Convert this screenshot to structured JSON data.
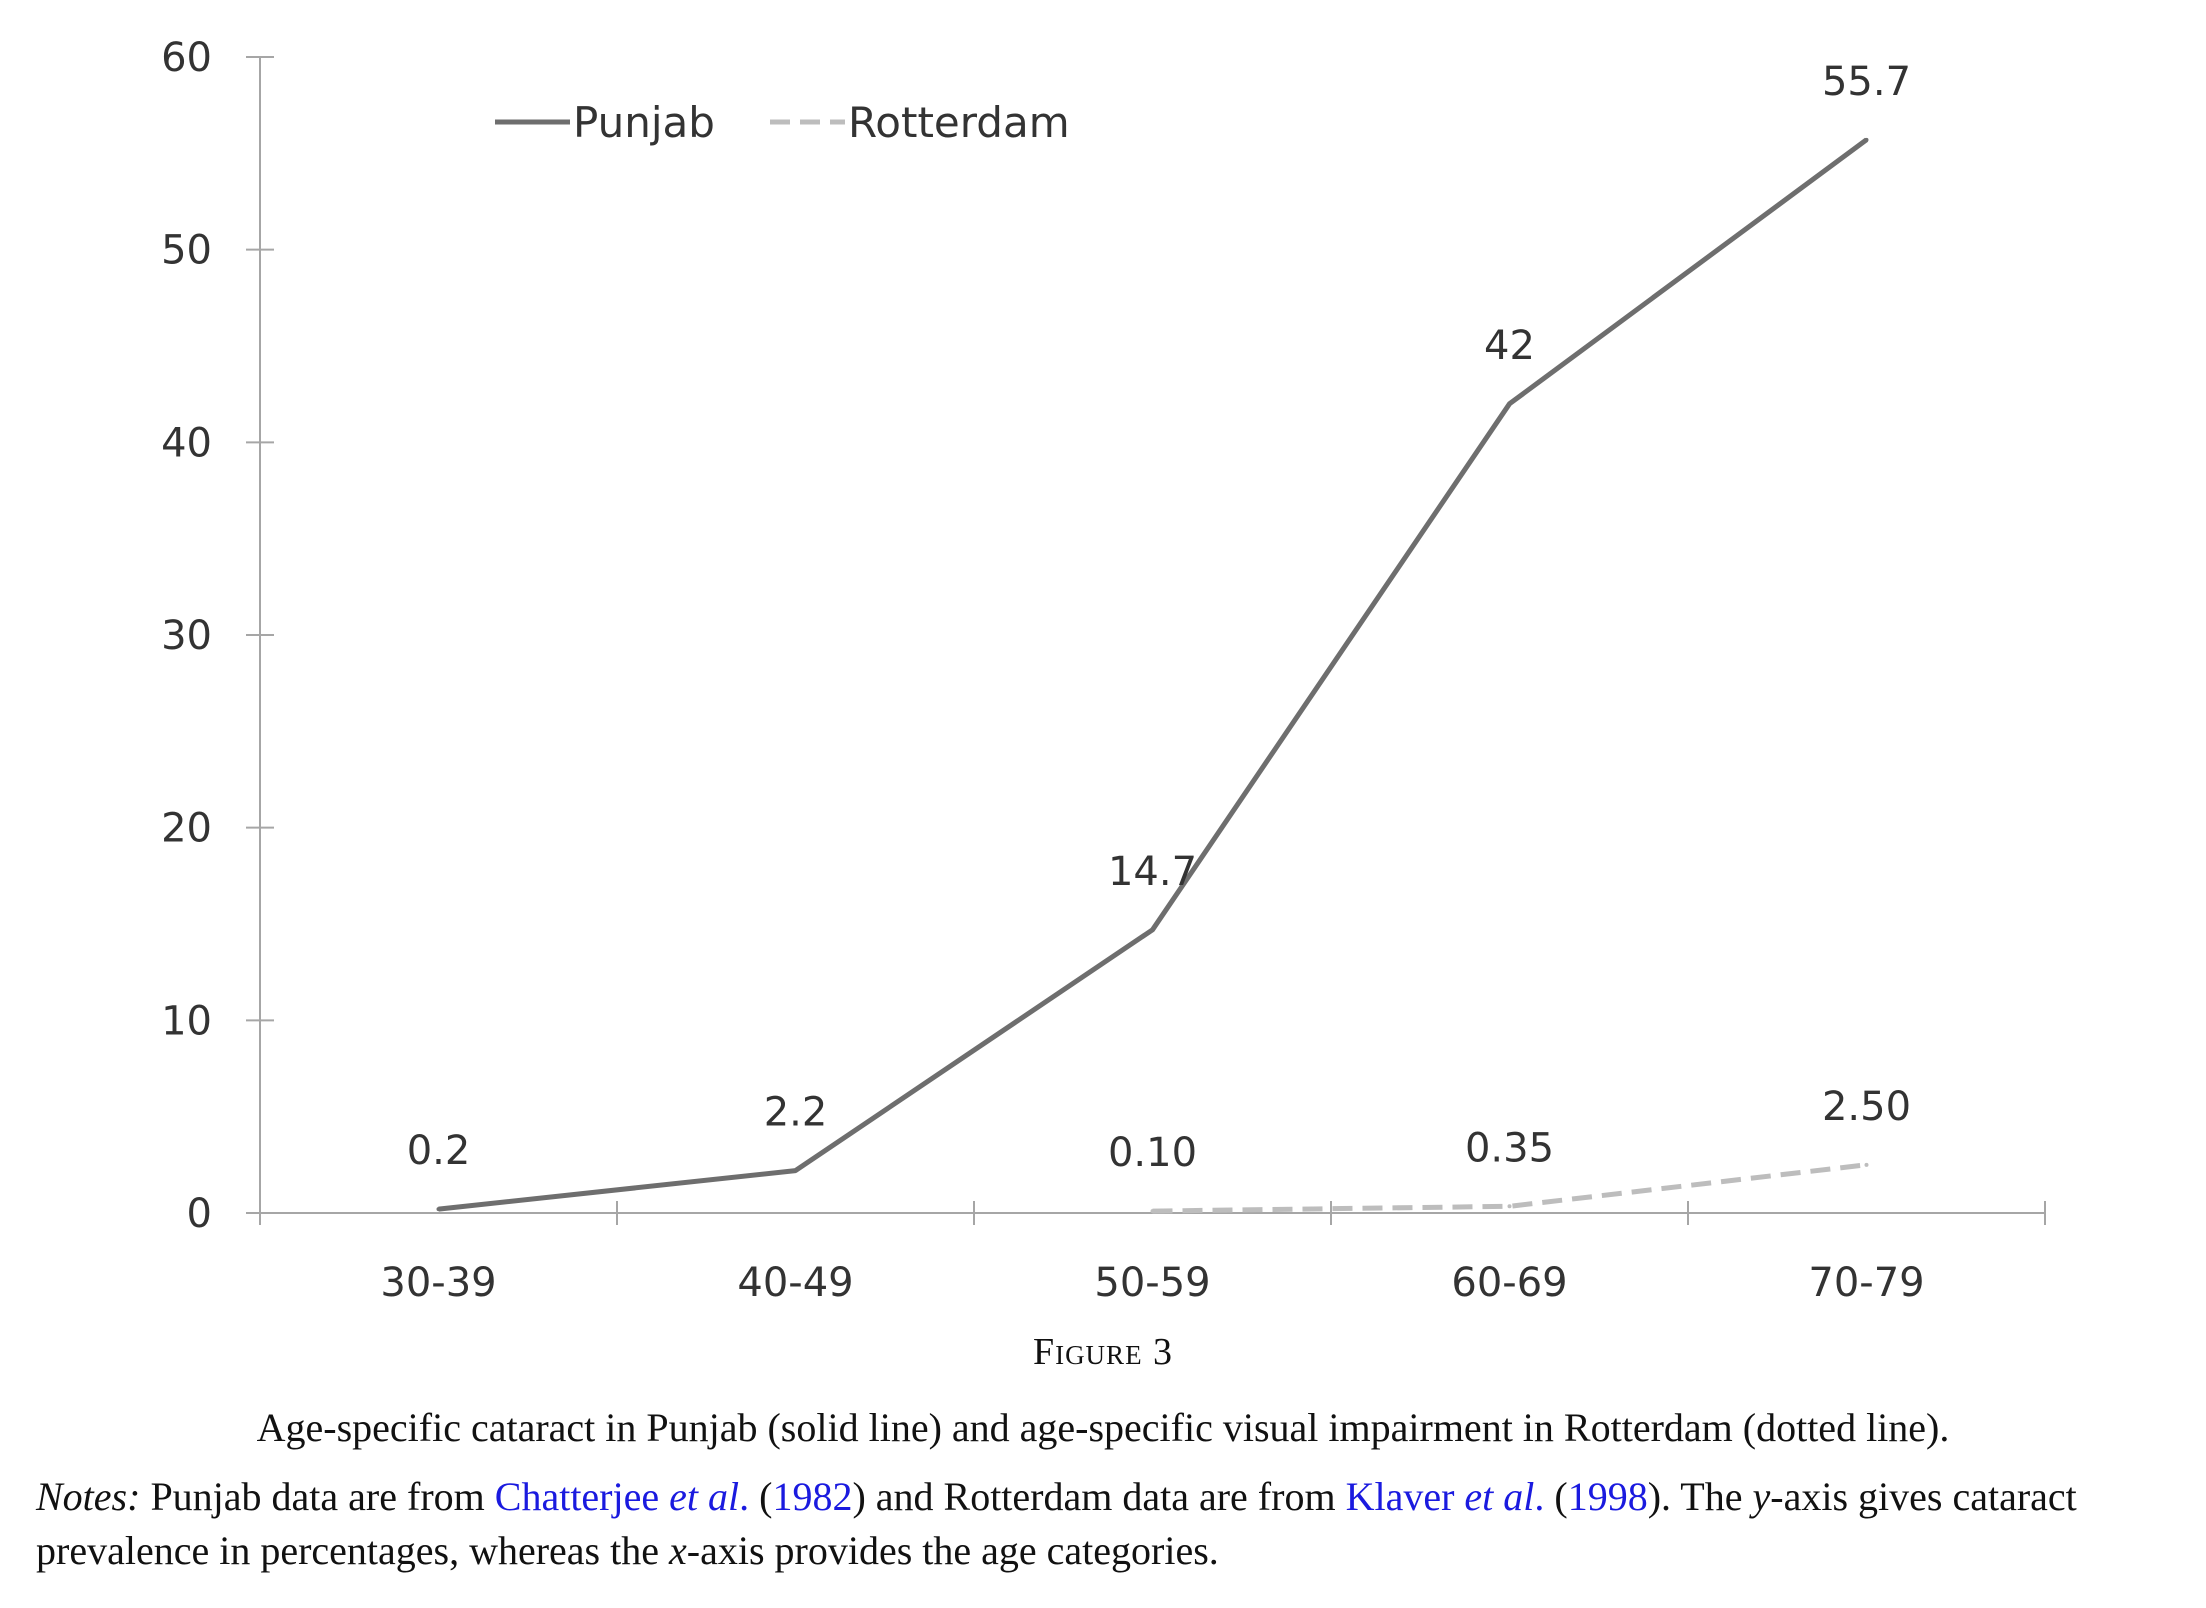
{
  "chart_data": {
    "type": "line",
    "categories": [
      "30-39",
      "40-49",
      "50-59",
      "60-69",
      "70-79"
    ],
    "ylim": [
      0,
      60
    ],
    "yticks": [
      0,
      10,
      20,
      30,
      40,
      50,
      60
    ],
    "grid": false,
    "legend_position": "top-left",
    "series": [
      {
        "name": "Punjab",
        "style": "solid",
        "color": "#6e6e6e",
        "points": [
          {
            "x": "30-39",
            "y": 0.2,
            "label": "0.2"
          },
          {
            "x": "40-49",
            "y": 2.2,
            "label": "2.2"
          },
          {
            "x": "50-59",
            "y": 14.7,
            "label": "14.7"
          },
          {
            "x": "60-69",
            "y": 42,
            "label": "42"
          },
          {
            "x": "70-79",
            "y": 55.7,
            "label": "55.7"
          }
        ]
      },
      {
        "name": "Rotterdam",
        "style": "dashed",
        "color": "#bdbdbd",
        "points": [
          {
            "x": "50-59",
            "y": 0.1,
            "label": "0.10"
          },
          {
            "x": "60-69",
            "y": 0.35,
            "label": "0.35"
          },
          {
            "x": "70-79",
            "y": 2.5,
            "label": "2.50"
          }
        ]
      }
    ]
  },
  "figure": {
    "title": "Figure 3",
    "caption": "Age-specific cataract in Punjab (solid line) and age-specific visual impairment in Rotterdam (dotted line).",
    "notes": {
      "label": "Notes:",
      "t1": " Punjab data are from ",
      "cite1_name": "Chatterjee",
      "cite1_etal": "et al",
      "cite1_dot": ".",
      "open1": " (",
      "cite1_year": "1982",
      "t2": ") and Rotterdam data are from ",
      "cite2_name": "Klaver",
      "cite2_etal": "et al",
      "cite2_dot": ".",
      "open2": " (",
      "cite2_year": "1998",
      "t3": "). The ",
      "y_var": "y",
      "t4": "-axis gives cataract prevalence in percentages, whereas the ",
      "x_var": "x",
      "t5": "-axis provides the age categories."
    }
  }
}
